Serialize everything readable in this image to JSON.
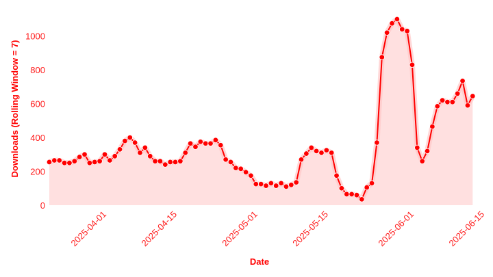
{
  "chart_data": {
    "type": "area",
    "xlabel": "Date",
    "ylabel": "Downloads (Rolling Window = 7)",
    "ylim": [
      0,
      1100
    ],
    "xlim": [
      "2025-03-21",
      "2025-06-15"
    ],
    "yticks": [
      0,
      200,
      400,
      600,
      800,
      1000
    ],
    "xticks": [
      "2025-04-01",
      "2025-04-15",
      "2025-05-01",
      "2025-05-15",
      "2025-06-01",
      "2025-06-15"
    ],
    "grid": false,
    "legend": "none",
    "colors": {
      "line": "#ff0000",
      "fill": "#ffe0e0",
      "text": "#ff1a1a"
    },
    "x_start": "2025-03-21",
    "x_step_days": 1,
    "values": [
      255,
      265,
      265,
      250,
      250,
      260,
      285,
      300,
      250,
      255,
      260,
      300,
      265,
      290,
      330,
      380,
      400,
      370,
      310,
      340,
      290,
      260,
      260,
      240,
      255,
      255,
      260,
      310,
      365,
      345,
      375,
      365,
      365,
      385,
      355,
      270,
      255,
      220,
      215,
      195,
      175,
      125,
      125,
      115,
      130,
      115,
      130,
      110,
      120,
      135,
      270,
      305,
      340,
      320,
      310,
      325,
      310,
      175,
      100,
      65,
      65,
      60,
      35,
      105,
      130,
      370,
      875,
      1020,
      1075,
      1100,
      1040,
      1030,
      830,
      340,
      260,
      320,
      465,
      585,
      620,
      610,
      610,
      660,
      735,
      590,
      645
    ]
  }
}
